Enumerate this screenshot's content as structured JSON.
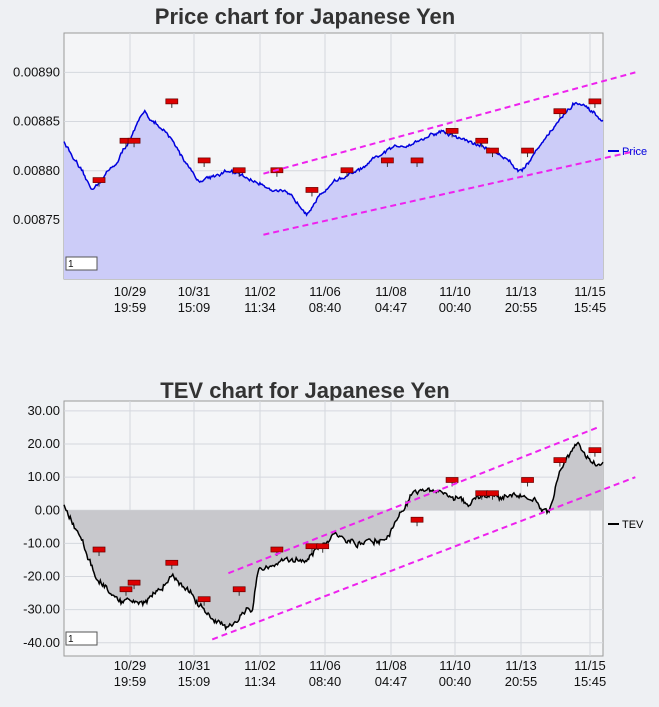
{
  "chart_data": [
    {
      "type": "area",
      "title": "Price chart for Japanese Yen",
      "xlabel": "",
      "ylabel": "",
      "x_tick_labels": [
        [
          "10/29",
          "19:59"
        ],
        [
          "10/31",
          "15:09"
        ],
        [
          "11/02",
          "11:34"
        ],
        [
          "11/06",
          "08:40"
        ],
        [
          "11/08",
          "04:47"
        ],
        [
          "11/10",
          "00:40"
        ],
        [
          "11/13",
          "20:55"
        ],
        [
          "11/15",
          "15:45"
        ]
      ],
      "y_tick_labels": [
        "0.00890",
        "0.00885",
        "0.00880",
        "0.00875"
      ],
      "y_ticks": [
        0.0089,
        0.00885,
        0.0088,
        0.00875
      ],
      "ylim": [
        0.00869,
        0.00894
      ],
      "legend": {
        "label": "Price",
        "placement": "right",
        "color": "#0000dd"
      },
      "series_color": "#0000dd",
      "fill_color": "#ccccf8",
      "trend_color": "#ee22ee",
      "grid": true,
      "input_box_value": "1",
      "x": [
        0,
        0.05,
        0.1,
        0.15,
        0.2,
        0.25,
        0.3,
        0.35,
        0.4,
        0.45,
        0.5,
        0.55,
        0.6,
        0.65,
        0.7,
        0.75,
        0.8,
        0.85,
        0.9,
        0.95,
        1
      ],
      "values": [
        0.00883,
        0.00878,
        0.00881,
        0.00886,
        0.00883,
        0.00879,
        0.0088,
        0.00879,
        0.00878,
        0.00876,
        0.00879,
        0.0088,
        0.00882,
        0.00883,
        0.00884,
        0.00883,
        0.00882,
        0.0088,
        0.00884,
        0.00887,
        0.00885
      ],
      "markers": [
        {
          "x": 0.065,
          "y": 0.00879
        },
        {
          "x": 0.115,
          "y": 0.00883
        },
        {
          "x": 0.13,
          "y": 0.00883
        },
        {
          "x": 0.2,
          "y": 0.00887
        },
        {
          "x": 0.26,
          "y": 0.00881
        },
        {
          "x": 0.325,
          "y": 0.0088
        },
        {
          "x": 0.395,
          "y": 0.0088
        },
        {
          "x": 0.46,
          "y": 0.00878
        },
        {
          "x": 0.525,
          "y": 0.0088
        },
        {
          "x": 0.6,
          "y": 0.00881
        },
        {
          "x": 0.655,
          "y": 0.00881
        },
        {
          "x": 0.72,
          "y": 0.00884
        },
        {
          "x": 0.775,
          "y": 0.00883
        },
        {
          "x": 0.795,
          "y": 0.00882
        },
        {
          "x": 0.86,
          "y": 0.00882
        },
        {
          "x": 0.92,
          "y": 0.00886
        },
        {
          "x": 0.985,
          "y": 0.00887
        }
      ],
      "trend_lines": [
        [
          {
            "x": 0.37,
            "y": 0.008735
          },
          {
            "x": 1.06,
            "y": 0.00882
          }
        ],
        [
          {
            "x": 0.37,
            "y": 0.008797
          },
          {
            "x": 1.06,
            "y": 0.0089
          }
        ]
      ]
    },
    {
      "type": "area",
      "title": "TEV chart for Japanese Yen",
      "xlabel": "",
      "ylabel": "",
      "x_tick_labels": [
        [
          "10/29",
          "19:59"
        ],
        [
          "10/31",
          "15:09"
        ],
        [
          "11/02",
          "11:34"
        ],
        [
          "11/06",
          "08:40"
        ],
        [
          "11/08",
          "04:47"
        ],
        [
          "11/10",
          "00:40"
        ],
        [
          "11/13",
          "20:55"
        ],
        [
          "11/15",
          "15:45"
        ]
      ],
      "y_tick_labels": [
        "30.00",
        "20.00",
        "10.00",
        "0.00",
        "-10.00",
        "-20.00",
        "-30.00",
        "-40.00"
      ],
      "y_ticks": [
        30,
        20,
        10,
        0,
        -10,
        -20,
        -30,
        -40
      ],
      "ylim": [
        -44,
        33
      ],
      "legend": {
        "label": "TEV",
        "placement": "right",
        "color": "#000000"
      },
      "series_color": "#000000",
      "fill_color": "#c8c8cc",
      "trend_color": "#ee22ee",
      "grid": true,
      "input_box_value": "1",
      "x": [
        0,
        0.03,
        0.06,
        0.1,
        0.15,
        0.2,
        0.25,
        0.3,
        0.35,
        0.36,
        0.4,
        0.45,
        0.5,
        0.55,
        0.6,
        0.65,
        0.7,
        0.75,
        0.8,
        0.85,
        0.9,
        0.92,
        0.95,
        0.98,
        1
      ],
      "values": [
        2,
        -8,
        -20,
        -28,
        -28,
        -20,
        -28,
        -35,
        -30,
        -18,
        -16,
        -14,
        -8,
        -10,
        -8,
        6,
        5,
        2,
        5,
        4,
        0,
        12,
        20,
        15,
        14
      ],
      "markers": [
        {
          "x": 0.065,
          "y": -12
        },
        {
          "x": 0.115,
          "y": -24
        },
        {
          "x": 0.13,
          "y": -22
        },
        {
          "x": 0.2,
          "y": -16
        },
        {
          "x": 0.26,
          "y": -27
        },
        {
          "x": 0.325,
          "y": -24
        },
        {
          "x": 0.395,
          "y": -12
        },
        {
          "x": 0.46,
          "y": -11
        },
        {
          "x": 0.48,
          "y": -11
        },
        {
          "x": 0.655,
          "y": -3
        },
        {
          "x": 0.72,
          "y": 9
        },
        {
          "x": 0.775,
          "y": 5
        },
        {
          "x": 0.795,
          "y": 5
        },
        {
          "x": 0.86,
          "y": 9
        },
        {
          "x": 0.92,
          "y": 15
        },
        {
          "x": 0.985,
          "y": 18
        }
      ],
      "trend_lines": [
        [
          {
            "x": 0.275,
            "y": -39
          },
          {
            "x": 1.06,
            "y": 10
          }
        ],
        [
          {
            "x": 0.305,
            "y": -19
          },
          {
            "x": 0.99,
            "y": 25
          }
        ]
      ]
    }
  ]
}
